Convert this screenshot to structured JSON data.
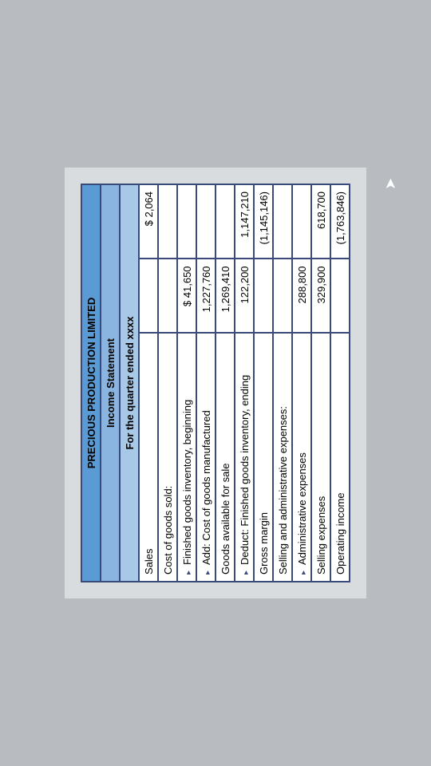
{
  "header": {
    "company": "PRECIOUS PRODUCTION LIMITED",
    "title": "Income Statement",
    "period": "For the quarter ended xxxx"
  },
  "rows": [
    {
      "label": "Sales",
      "c1": "",
      "c2": "$        2,064",
      "arrow": false
    },
    {
      "label": "Cost of goods sold:",
      "c1": "",
      "c2": "",
      "arrow": false
    },
    {
      "label": "Finished goods inventory, beginning",
      "c1": "$     41,650",
      "c2": "",
      "arrow": true
    },
    {
      "label": "Add: Cost of goods manufactured",
      "c1": "1,227,760",
      "c2": "",
      "arrow": true
    },
    {
      "label": "Goods available for sale",
      "c1": "1,269,410",
      "c2": "",
      "arrow": false
    },
    {
      "label": "Deduct: Finished goods inventory, ending",
      "c1": "122,200",
      "c2": "1,147,210",
      "arrow": true
    },
    {
      "label": "Gross margin",
      "c1": "",
      "c2": "(1,145,146)",
      "arrow": false
    },
    {
      "label": "Selling and administrative expenses:",
      "c1": "",
      "c2": "",
      "arrow": false
    },
    {
      "label": "Administrative expenses",
      "c1": "288,800",
      "c2": "",
      "arrow": true
    },
    {
      "label": "Selling expenses",
      "c1": "329,900",
      "c2": "618,700",
      "arrow": false
    },
    {
      "label": "Operating income",
      "c1": "",
      "c2": "(1,763,846)",
      "arrow": false
    }
  ],
  "colors": {
    "banner": "#5b9bd5",
    "sub1": "#8ab5e0",
    "sub2": "#a8c8e8",
    "border": "#3a4a7a",
    "page_bg": "#b8bcc0"
  }
}
